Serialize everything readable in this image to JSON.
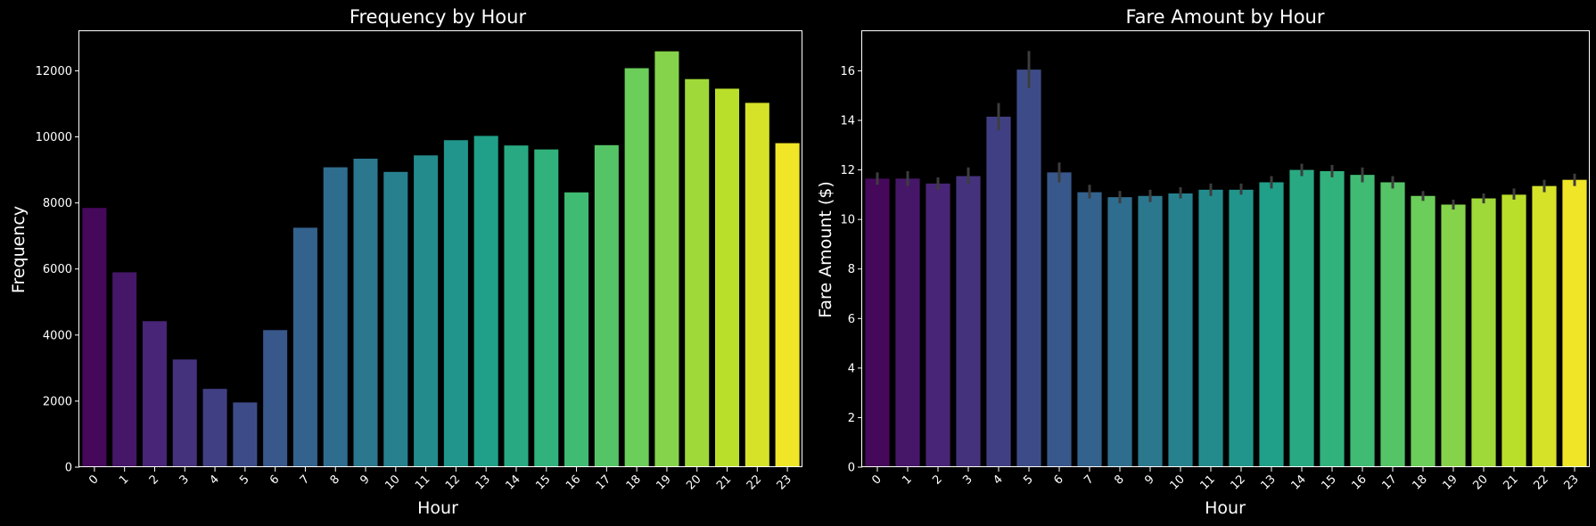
{
  "chart_data": [
    {
      "type": "bar",
      "title": "Frequency by Hour",
      "xlabel": "Hour",
      "ylabel": "Frequency",
      "categories": [
        "0",
        "1",
        "2",
        "3",
        "4",
        "5",
        "6",
        "7",
        "8",
        "9",
        "10",
        "11",
        "12",
        "13",
        "14",
        "15",
        "16",
        "17",
        "18",
        "19",
        "20",
        "21",
        "22",
        "23"
      ],
      "values": [
        7850,
        5900,
        4420,
        3260,
        2370,
        1960,
        4150,
        7250,
        9080,
        9340,
        8940,
        9440,
        9900,
        10030,
        9740,
        9620,
        8320,
        9750,
        12080,
        12590,
        11750,
        11460,
        11030,
        9810
      ],
      "ylim": [
        0,
        13200
      ],
      "yticks": [
        0,
        2000,
        4000,
        6000,
        8000,
        10000,
        12000
      ],
      "grid": false,
      "palette": "viridis"
    },
    {
      "type": "bar",
      "title": "Fare Amount by Hour",
      "xlabel": "Hour",
      "ylabel": "Fare Amount ($)",
      "categories": [
        "0",
        "1",
        "2",
        "3",
        "4",
        "5",
        "6",
        "7",
        "8",
        "9",
        "10",
        "11",
        "12",
        "13",
        "14",
        "15",
        "16",
        "17",
        "18",
        "19",
        "20",
        "21",
        "22",
        "23"
      ],
      "values": [
        11.65,
        11.65,
        11.45,
        11.75,
        14.15,
        16.05,
        11.9,
        11.1,
        10.9,
        10.95,
        11.05,
        11.2,
        11.2,
        11.5,
        12.0,
        11.95,
        11.8,
        11.5,
        10.95,
        10.6,
        10.85,
        11.0,
        11.35,
        11.6
      ],
      "error_low": [
        11.4,
        11.35,
        11.2,
        11.45,
        13.6,
        15.3,
        11.5,
        10.85,
        10.65,
        10.7,
        10.85,
        10.95,
        11.0,
        11.25,
        11.75,
        11.7,
        11.5,
        11.25,
        10.75,
        10.4,
        10.65,
        10.8,
        11.1,
        11.35
      ],
      "error_high": [
        11.9,
        11.95,
        11.7,
        12.1,
        14.7,
        16.8,
        12.3,
        11.4,
        11.15,
        11.2,
        11.3,
        11.45,
        11.45,
        11.75,
        12.25,
        12.2,
        12.1,
        11.75,
        11.15,
        10.8,
        11.05,
        11.25,
        11.6,
        11.85
      ],
      "ylim": [
        0,
        17.6
      ],
      "yticks": [
        0,
        2,
        4,
        6,
        8,
        10,
        12,
        14,
        16
      ],
      "grid": false,
      "palette": "viridis"
    }
  ]
}
